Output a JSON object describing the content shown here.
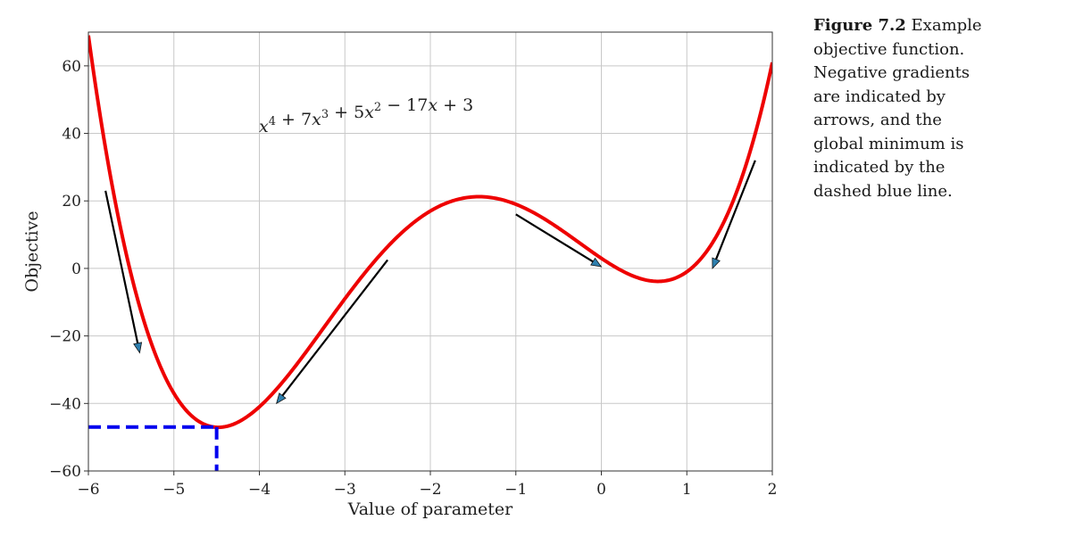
{
  "caption": {
    "figure_label": "Figure 7.2",
    "text": "Example objective function. Negative gradients are indicated by arrows, and the global minimum is indicated by the dashed blue line."
  },
  "chart_data": {
    "type": "line",
    "function": {
      "coefficients": [
        1,
        7,
        5,
        -17,
        3
      ],
      "label_parts": [
        "x",
        "4",
        " + 7",
        "x",
        "3",
        " + 5",
        "x",
        "2",
        " − 17",
        "x",
        " + 3"
      ]
    },
    "xlabel": "Value of parameter",
    "ylabel": "Objective",
    "xlim": [
      -6,
      2
    ],
    "ylim": [
      -60,
      70
    ],
    "xticks": [
      -6,
      -5,
      -4,
      -3,
      -2,
      -1,
      0,
      1,
      2
    ],
    "yticks": [
      -60,
      -40,
      -20,
      0,
      20,
      40,
      60
    ],
    "xtick_labels": [
      "−6",
      "−5",
      "−4",
      "−3",
      "−2",
      "−1",
      "0",
      "1",
      "2"
    ],
    "ytick_labels": [
      "−60",
      "−40",
      "−20",
      "0",
      "20",
      "40",
      "60"
    ],
    "grid": true,
    "curve_color": "#ee0000",
    "arrow_color": "#000000",
    "arrow_head_color": "#2e7fae",
    "minimum_line_color": "#0000ee",
    "global_minimum": {
      "x": -4.5,
      "y": -47
    },
    "arrows": [
      {
        "from": [
          -5.8,
          23
        ],
        "to": [
          -5.4,
          -25
        ]
      },
      {
        "from": [
          -2.5,
          2.5
        ],
        "to": [
          -3.8,
          -40
        ]
      },
      {
        "from": [
          -1.0,
          16
        ],
        "to": [
          0.0,
          0.5
        ]
      },
      {
        "from": [
          1.8,
          32
        ],
        "to": [
          1.3,
          0
        ]
      }
    ]
  }
}
